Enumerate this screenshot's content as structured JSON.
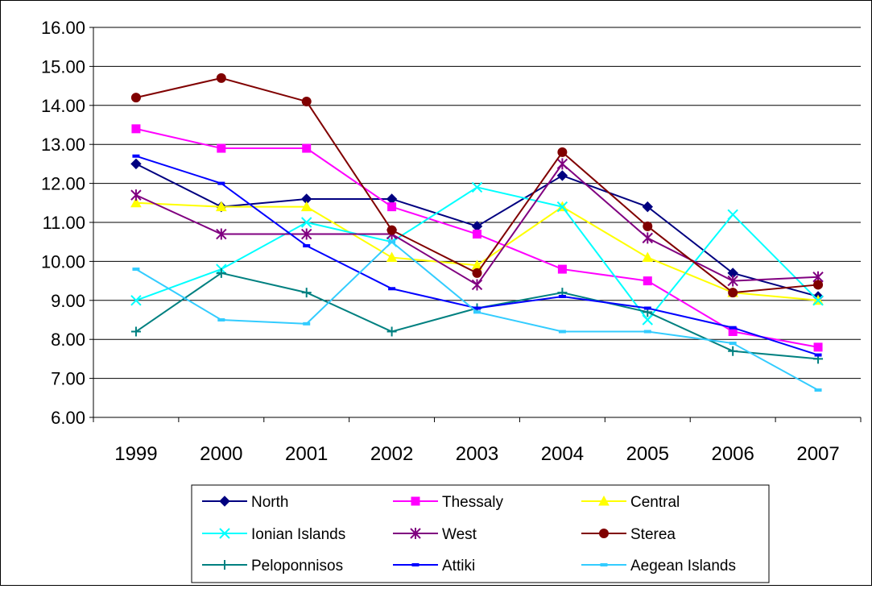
{
  "chart_data": {
    "type": "line",
    "title": "",
    "xlabel": "",
    "ylabel": "",
    "categories": [
      "1999",
      "2000",
      "2001",
      "2002",
      "2003",
      "2004",
      "2005",
      "2006",
      "2007"
    ],
    "ylim": [
      6,
      16
    ],
    "yticks": [
      "6.00",
      "7.00",
      "8.00",
      "9.00",
      "10.00",
      "11.00",
      "12.00",
      "13.00",
      "14.00",
      "15.00",
      "16.00"
    ],
    "grid": "horizontal",
    "legend_position": "bottom",
    "series": [
      {
        "name": "North",
        "color": "#000080",
        "marker": "diamond",
        "values": [
          12.5,
          11.4,
          11.6,
          11.6,
          10.9,
          12.2,
          11.4,
          9.7,
          9.1
        ]
      },
      {
        "name": "Thessaly",
        "color": "#FF00FF",
        "marker": "square",
        "values": [
          13.4,
          12.9,
          12.9,
          11.4,
          10.7,
          9.8,
          9.5,
          8.2,
          7.8
        ]
      },
      {
        "name": "Central",
        "color": "#FFFF00",
        "marker": "triangle",
        "values": [
          11.5,
          11.4,
          11.4,
          10.1,
          9.9,
          11.4,
          10.1,
          9.2,
          9.0
        ]
      },
      {
        "name": "Ionian Islands",
        "color": "#00FFFF",
        "marker": "x",
        "values": [
          9.0,
          9.8,
          11.0,
          10.5,
          11.9,
          11.4,
          8.5,
          11.2,
          9.0
        ]
      },
      {
        "name": "West",
        "color": "#800080",
        "marker": "star",
        "values": [
          11.7,
          10.7,
          10.7,
          10.7,
          9.4,
          12.5,
          10.6,
          9.5,
          9.6
        ]
      },
      {
        "name": "Sterea",
        "color": "#800000",
        "marker": "circle",
        "values": [
          14.2,
          14.7,
          14.1,
          10.8,
          9.7,
          12.8,
          10.9,
          9.2,
          9.4
        ]
      },
      {
        "name": "Peloponnisos",
        "color": "#008080",
        "marker": "plus",
        "values": [
          8.2,
          9.7,
          9.2,
          8.2,
          8.8,
          9.2,
          8.7,
          7.7,
          7.5
        ]
      },
      {
        "name": "Attiki",
        "color": "#0000FF",
        "marker": "dash",
        "values": [
          12.7,
          12.0,
          10.4,
          9.3,
          8.8,
          9.1,
          8.8,
          8.3,
          7.6
        ]
      },
      {
        "name": "Aegean Islands",
        "color": "#33CCFF",
        "marker": "dash",
        "values": [
          9.8,
          8.5,
          8.4,
          10.5,
          8.7,
          8.2,
          8.2,
          7.9,
          6.7
        ]
      }
    ]
  }
}
